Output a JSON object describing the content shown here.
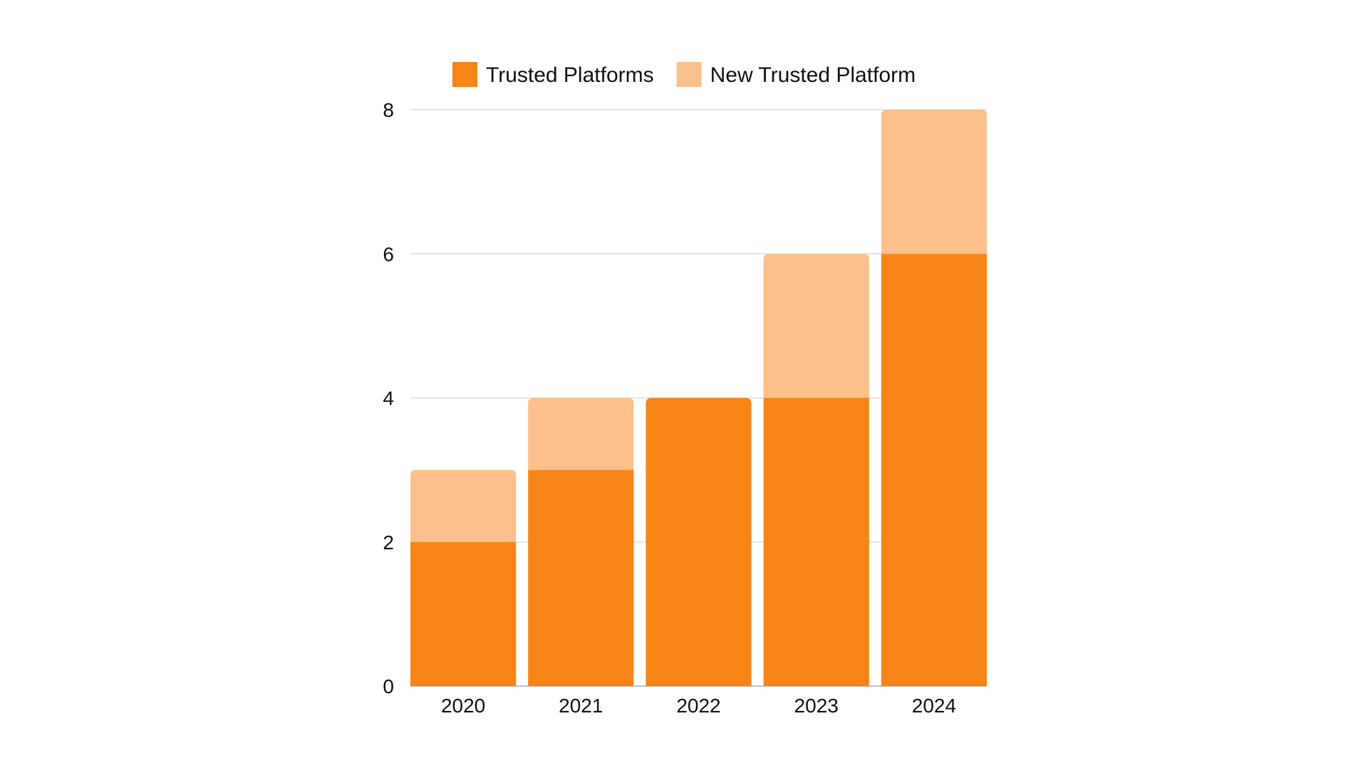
{
  "chart_data": {
    "type": "bar",
    "stacked": true,
    "categories": [
      "2020",
      "2021",
      "2022",
      "2023",
      "2024"
    ],
    "series": [
      {
        "name": "Trusted Platforms",
        "values": [
          2,
          3,
          4,
          4,
          6
        ],
        "color": "#f78417"
      },
      {
        "name": "New Trusted Platform",
        "values": [
          1,
          1,
          0,
          2,
          2
        ],
        "color": "#fbc08b"
      }
    ],
    "title": "",
    "xlabel": "",
    "ylabel": "",
    "ylim": [
      0,
      8
    ],
    "yticks": [
      0,
      2,
      4,
      6,
      8
    ],
    "grid": true,
    "legend_position": "top"
  }
}
